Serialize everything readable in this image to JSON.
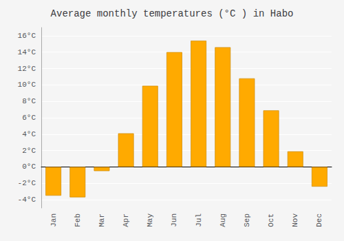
{
  "chart_data": {
    "type": "bar",
    "title": "Average monthly temperatures (°C ) in Habo",
    "categories": [
      "Jan",
      "Feb",
      "Mar",
      "Apr",
      "May",
      "Jun",
      "Jul",
      "Aug",
      "Sep",
      "Oct",
      "Nov",
      "Dec"
    ],
    "values": [
      -3.5,
      -3.7,
      -0.5,
      4.1,
      9.9,
      14.0,
      15.4,
      14.6,
      10.8,
      6.9,
      1.9,
      -2.4
    ],
    "color": "#FFAA00",
    "ylim": [
      -5,
      17
    ],
    "yticks": [
      {
        "value": -4,
        "label": "-4°C"
      },
      {
        "value": -2,
        "label": "-2°C"
      },
      {
        "value": 0,
        "label": "0°C"
      },
      {
        "value": 2,
        "label": "2°C"
      },
      {
        "value": 4,
        "label": "4°C"
      },
      {
        "value": 6,
        "label": "6°C"
      },
      {
        "value": 8,
        "label": "8°C"
      },
      {
        "value": 10,
        "label": "10°C"
      },
      {
        "value": 12,
        "label": "12°C"
      },
      {
        "value": 14,
        "label": "14°C"
      },
      {
        "value": 16,
        "label": "16°C"
      }
    ],
    "grid": true
  }
}
